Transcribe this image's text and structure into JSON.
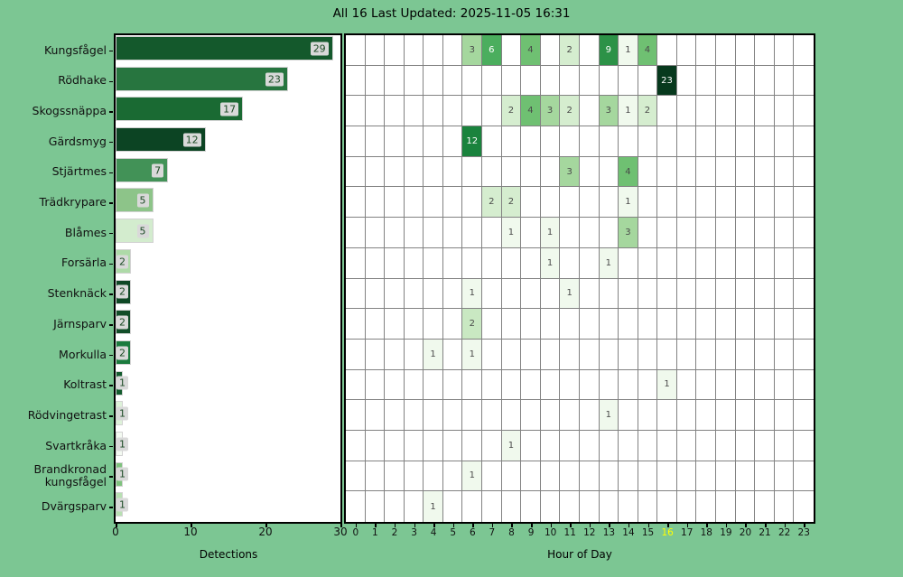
{
  "header": {
    "title": "All 16 Last Updated: 2025-11-05 16:31"
  },
  "chart_data": [
    {
      "type": "bar",
      "orientation": "horizontal",
      "title": "",
      "xlabel": "Detections",
      "xlim": [
        0,
        30
      ],
      "xticks": [
        0,
        10,
        20,
        30
      ],
      "grid": false,
      "categories": [
        "Kungsfågel",
        "Rödhake",
        "Skogssnäppa",
        "Gärdsmyg",
        "Stjärtmes",
        "Trädkrypare",
        "Blåmes",
        "Forsärla",
        "Stenknäck",
        "Järnsparv",
        "Morkulla",
        "Koltrast",
        "Rödvingetrast",
        "Svartkråka",
        "Brandkronad kungsfågel",
        "Dvärgsparv"
      ],
      "values": [
        29,
        23,
        17,
        12,
        7,
        5,
        5,
        2,
        2,
        2,
        2,
        1,
        1,
        1,
        1,
        1
      ],
      "bar_colors": [
        "#14592c",
        "#27753f",
        "#1a6a33",
        "#0c4423",
        "#429257",
        "#8dc489",
        "#d3ecce",
        "#aedaa8",
        "#0e4825",
        "#114d28",
        "#1b7b3e",
        "#135c2e",
        "#def2d9",
        "#f4faf2",
        "#7fc27e",
        "#b8e0b2"
      ],
      "label_box_color": "#d9d9d9"
    },
    {
      "type": "heatmap",
      "xlabel": "Hour of Day",
      "hours": [
        0,
        1,
        2,
        3,
        4,
        5,
        6,
        7,
        8,
        9,
        10,
        11,
        12,
        13,
        14,
        15,
        16,
        17,
        18,
        19,
        20,
        21,
        22,
        23
      ],
      "highlighted_hour": 16,
      "highlight_color": "#ffff00",
      "grid": true,
      "empty_color": "#ffffff",
      "rows": [
        {
          "name": "Kungsfågel",
          "cells": [
            {
              "hour": 6,
              "value": 3,
              "color": "#a5d79e"
            },
            {
              "hour": 7,
              "value": 6,
              "color": "#4bae5e"
            },
            {
              "hour": 9,
              "value": 4,
              "color": "#6fc072"
            },
            {
              "hour": 11,
              "value": 2,
              "color": "#d5edcf"
            },
            {
              "hour": 13,
              "value": 9,
              "color": "#2c9247"
            },
            {
              "hour": 14,
              "value": 1,
              "color": "#f0f9ed"
            },
            {
              "hour": 15,
              "value": 4,
              "color": "#6fc072"
            }
          ]
        },
        {
          "name": "Rödhake",
          "cells": [
            {
              "hour": 16,
              "value": 23,
              "color": "#07391d"
            }
          ]
        },
        {
          "name": "Skogssnäppa",
          "cells": [
            {
              "hour": 8,
              "value": 2,
              "color": "#d5edcf"
            },
            {
              "hour": 9,
              "value": 4,
              "color": "#6fc072"
            },
            {
              "hour": 10,
              "value": 3,
              "color": "#a5d79e"
            },
            {
              "hour": 11,
              "value": 2,
              "color": "#d5edcf"
            },
            {
              "hour": 13,
              "value": 3,
              "color": "#a5d79e"
            },
            {
              "hour": 14,
              "value": 1,
              "color": "#f0f9ed"
            },
            {
              "hour": 15,
              "value": 2,
              "color": "#d5edcf"
            }
          ]
        },
        {
          "name": "Gärdsmyg",
          "cells": [
            {
              "hour": 6,
              "value": 12,
              "color": "#1a833d"
            }
          ]
        },
        {
          "name": "Stjärtmes",
          "cells": [
            {
              "hour": 11,
              "value": 3,
              "color": "#a5d79e"
            },
            {
              "hour": 14,
              "value": 4,
              "color": "#6fc072"
            }
          ]
        },
        {
          "name": "Trädkrypare",
          "cells": [
            {
              "hour": 7,
              "value": 2,
              "color": "#d5edcf"
            },
            {
              "hour": 8,
              "value": 2,
              "color": "#d5edcf"
            },
            {
              "hour": 14,
              "value": 1,
              "color": "#f0f9ed"
            }
          ]
        },
        {
          "name": "Blåmes",
          "cells": [
            {
              "hour": 8,
              "value": 1,
              "color": "#f0f9ed"
            },
            {
              "hour": 10,
              "value": 1,
              "color": "#f0f9ed"
            },
            {
              "hour": 14,
              "value": 3,
              "color": "#a5d79e"
            }
          ]
        },
        {
          "name": "Forsärla",
          "cells": [
            {
              "hour": 10,
              "value": 1,
              "color": "#f0f9ed"
            },
            {
              "hour": 13,
              "value": 1,
              "color": "#f0f9ed"
            }
          ]
        },
        {
          "name": "Stenknäck",
          "cells": [
            {
              "hour": 6,
              "value": 1,
              "color": "#f0f9ed"
            },
            {
              "hour": 11,
              "value": 1,
              "color": "#f0f9ed"
            }
          ]
        },
        {
          "name": "Järnsparv",
          "cells": [
            {
              "hour": 6,
              "value": 2,
              "color": "#c9e8c2"
            }
          ]
        },
        {
          "name": "Morkulla",
          "cells": [
            {
              "hour": 4,
              "value": 1,
              "color": "#f0f9ed"
            },
            {
              "hour": 6,
              "value": 1,
              "color": "#f0f9ed"
            }
          ]
        },
        {
          "name": "Koltrast",
          "cells": [
            {
              "hour": 16,
              "value": 1,
              "color": "#f0f9ed"
            }
          ]
        },
        {
          "name": "Rödvingetrast",
          "cells": [
            {
              "hour": 13,
              "value": 1,
              "color": "#f0f9ed"
            }
          ]
        },
        {
          "name": "Svartkråka",
          "cells": [
            {
              "hour": 8,
              "value": 1,
              "color": "#f0f9ed"
            }
          ]
        },
        {
          "name": "Brandkronad kungsfågel",
          "cells": [
            {
              "hour": 6,
              "value": 1,
              "color": "#f0f9ed"
            }
          ]
        },
        {
          "name": "Dvärgsparv",
          "cells": [
            {
              "hour": 4,
              "value": 1,
              "color": "#f0f9ed"
            }
          ]
        }
      ]
    }
  ]
}
